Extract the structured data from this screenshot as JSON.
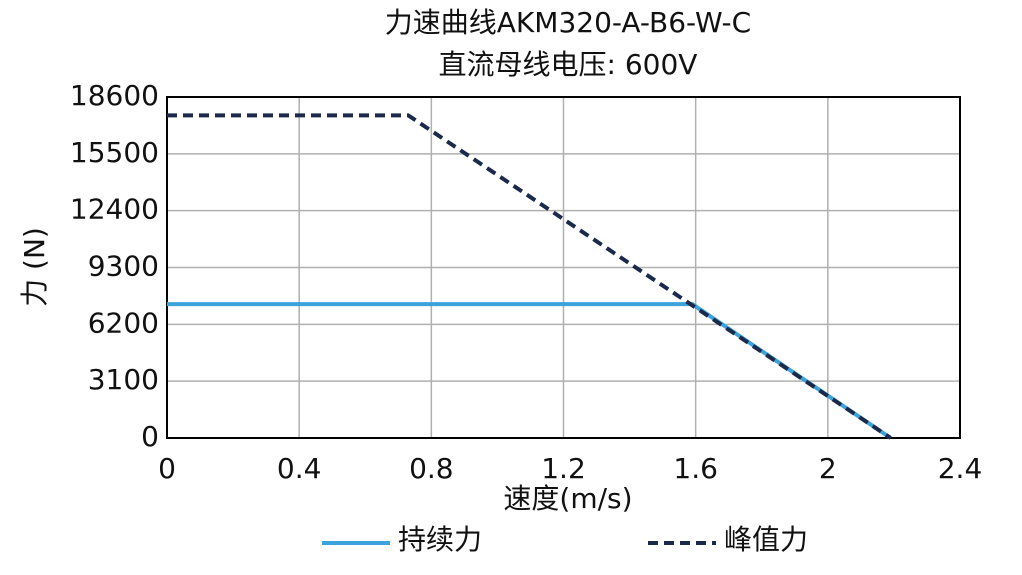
{
  "chart_data": {
    "type": "line",
    "title": "力速曲线AKM320-A-B6-W-C",
    "subtitle": "直流母线电压: 600V",
    "x_label": "速度(m/s)",
    "y_label": "力 (N)",
    "xlim": [
      0,
      2.4
    ],
    "xticks": [
      0,
      0.4,
      0.8,
      1.2,
      1.6,
      2,
      2.4
    ],
    "ylim": [
      0,
      18600
    ],
    "yticks": [
      0,
      3100,
      6200,
      9300,
      12400,
      15500,
      18600
    ],
    "grid": true,
    "legend": "bottom",
    "series": [
      {
        "name": "持续力",
        "color": "#3aa3dc",
        "line_style": "solid",
        "x": [
          0,
          1.59,
          2.19
        ],
        "values": [
          7300,
          7300,
          0
        ]
      },
      {
        "name": "峰值力",
        "color": "#1b2a4a",
        "line_style": "dashed",
        "x": [
          0,
          0.73,
          2.19
        ],
        "values": [
          17600,
          17600,
          0
        ]
      }
    ]
  }
}
